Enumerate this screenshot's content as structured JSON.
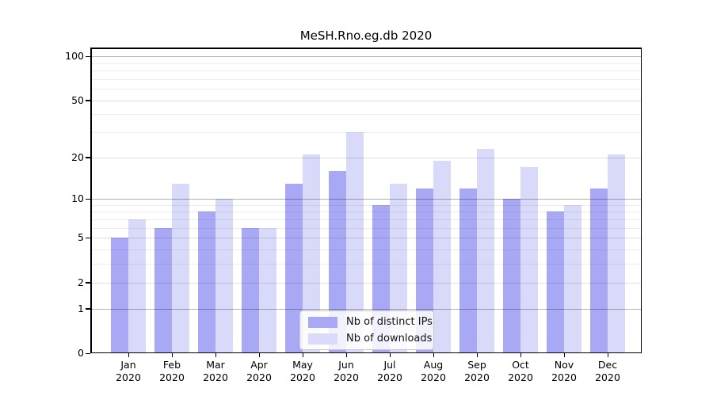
{
  "title": "MeSH.Rno.eg.db 2020",
  "chart_data": {
    "type": "bar",
    "title": "MeSH.Rno.eg.db 2020",
    "categories": [
      "Jan",
      "Feb",
      "Mar",
      "Apr",
      "May",
      "Jun",
      "Jul",
      "Aug",
      "Sep",
      "Oct",
      "Nov",
      "Dec"
    ],
    "category_year": "2020",
    "series": [
      {
        "name": "Nb of distinct IPs",
        "key": "distinct-ips",
        "color": "#a8a8f4",
        "values": [
          5,
          6,
          8,
          6,
          13,
          16,
          9,
          12,
          12,
          10,
          8,
          12
        ]
      },
      {
        "name": "Nb of downloads",
        "key": "downloads",
        "color": "#d9d9fa",
        "values": [
          7,
          13,
          10,
          6,
          21,
          30,
          13,
          19,
          23,
          17,
          9,
          21
        ]
      }
    ],
    "yscale": "log1p",
    "ylim": [
      0,
      114.7
    ],
    "yticks": [
      0,
      1,
      2,
      5,
      10,
      20,
      50,
      100
    ],
    "ytick_labels": [
      "0",
      "1",
      "2",
      "5",
      "10",
      "20",
      "50",
      "100"
    ],
    "grid": {
      "on": true,
      "decade_lines": [
        1,
        10,
        100
      ],
      "mid_lines": [
        2,
        5,
        20,
        50
      ],
      "minor_lines": [
        3,
        4,
        6,
        7,
        8,
        9,
        30,
        40,
        60,
        70,
        80,
        90
      ]
    },
    "legend_position": "bottom-center",
    "xlabel": "",
    "ylabel": ""
  },
  "colors": {
    "background": "#ffffff",
    "axis": "#000000",
    "bar_distinct_ips": "#a8a8f4",
    "bar_downloads": "#d9d9fa"
  }
}
